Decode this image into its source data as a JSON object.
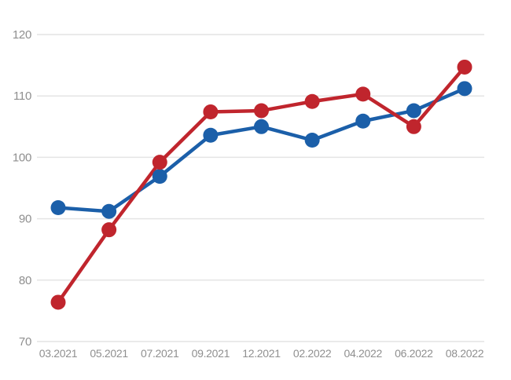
{
  "chart_data": {
    "type": "line",
    "title": "",
    "subtitle": "",
    "xlabel": "",
    "ylabel": "",
    "legend": "none",
    "grid": "horizontal",
    "background_color": "#ffffff",
    "grid_color": "#e4e4e4",
    "tick_label_color": "#8f8f8f",
    "ylim": [
      70,
      120
    ],
    "y_ticks": [
      "70",
      "80",
      "90",
      "100",
      "110",
      "120"
    ],
    "y_tick_values": [
      70,
      80,
      90,
      100,
      110,
      120
    ],
    "categories": [
      "03.2021",
      "05.2021",
      "07.2021",
      "09.2021",
      "12.2021",
      "02.2022",
      "04.2022",
      "06.2022",
      "08.2022"
    ],
    "series": [
      {
        "name": "blue-series",
        "color": "#1b5fa9",
        "values": [
          91.8,
          91.2,
          96.9,
          103.6,
          105.0,
          102.8,
          105.9,
          107.6,
          111.2
        ]
      },
      {
        "name": "red-series",
        "color": "#c0252d",
        "values": [
          76.4,
          88.2,
          99.2,
          107.4,
          107.6,
          109.1,
          110.3,
          105.0,
          114.7
        ]
      }
    ]
  }
}
